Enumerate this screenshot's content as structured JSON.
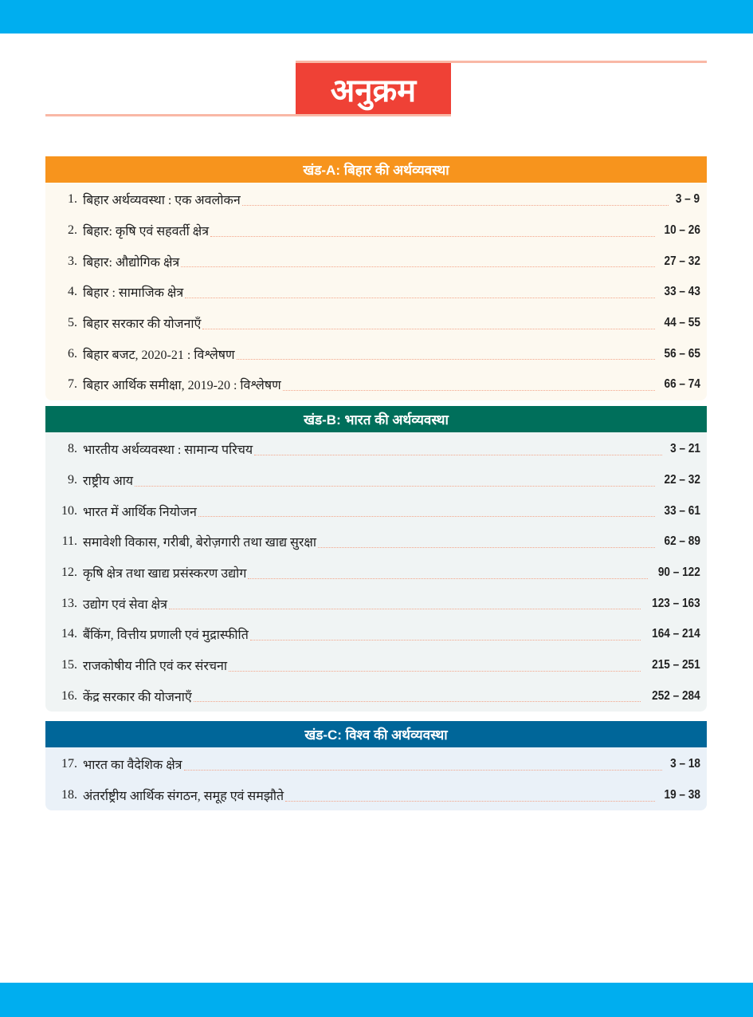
{
  "title": "अनुक्रम",
  "colors": {
    "bars": "#00aeef",
    "title_bg": "#ef4136",
    "section_a": "#f7941d",
    "section_b": "#006f5b",
    "section_c": "#006699"
  },
  "sections": [
    {
      "heading": "खंड-A: बिहार की अर्थव्यवस्था",
      "items": [
        {
          "num": "1.",
          "title": "बिहार अर्थव्यवस्था : एक अवलोकन",
          "pages": "3 – 9"
        },
        {
          "num": "2.",
          "title": "बिहार: कृषि एवं सहवर्ती क्षेत्र",
          "pages": "10 – 26"
        },
        {
          "num": "3.",
          "title": "बिहार: औद्योगिक क्षेत्र",
          "pages": "27 – 32"
        },
        {
          "num": "4.",
          "title": "बिहार : सामाजिक क्षेत्र",
          "pages": "33 – 43"
        },
        {
          "num": "5.",
          "title": "बिहार सरकार की योजनाएँ",
          "pages": "44 – 55"
        },
        {
          "num": "6.",
          "title": "बिहार बजट, 2020-21 : विश्लेषण",
          "pages": "56 – 65"
        },
        {
          "num": "7.",
          "title": "बिहार आर्थिक समीक्षा, 2019-20 : विश्लेषण",
          "pages": "66 – 74"
        }
      ]
    },
    {
      "heading": "खंड-B: भारत की अर्थव्यवस्था",
      "items": [
        {
          "num": "8.",
          "title": "भारतीय अर्थव्यवस्था : सामान्य परिचय",
          "pages": "3 – 21"
        },
        {
          "num": "9.",
          "title": "राष्ट्रीय आय",
          "pages": "22 – 32"
        },
        {
          "num": "10.",
          "title": "भारत में आर्थिक नियोजन",
          "pages": "33 – 61"
        },
        {
          "num": "11.",
          "title": "समावेशी विकास, गरीबी, बेरोज़गारी तथा खाद्य सुरक्षा",
          "pages": "62 – 89"
        },
        {
          "num": "12.",
          "title": "कृषि क्षेत्र तथा खाद्य प्रसंस्करण उद्योग",
          "pages": "90 – 122"
        },
        {
          "num": "13.",
          "title": "उद्योग एवं सेवा क्षेत्र",
          "pages": "123 – 163"
        },
        {
          "num": "14.",
          "title": "बैंकिंग, वित्तीय प्रणाली एवं मुद्रास्फीति",
          "pages": "164 – 214"
        },
        {
          "num": "15.",
          "title": "राजकोषीय नीति एवं कर संरचना",
          "pages": "215 – 251"
        },
        {
          "num": "16.",
          "title": "केंद्र सरकार की योजनाएँ",
          "pages": "252 – 284"
        }
      ]
    },
    {
      "heading": "खंड-C: विश्व की अर्थव्यवस्था",
      "items": [
        {
          "num": "17.",
          "title": "भारत का वैदेशिक क्षेत्र",
          "pages": "3 – 18"
        },
        {
          "num": "18.",
          "title": "अंतर्राष्ट्रीय आर्थिक संगठन, समूह एवं समझौते",
          "pages": "19 – 38"
        }
      ]
    }
  ]
}
